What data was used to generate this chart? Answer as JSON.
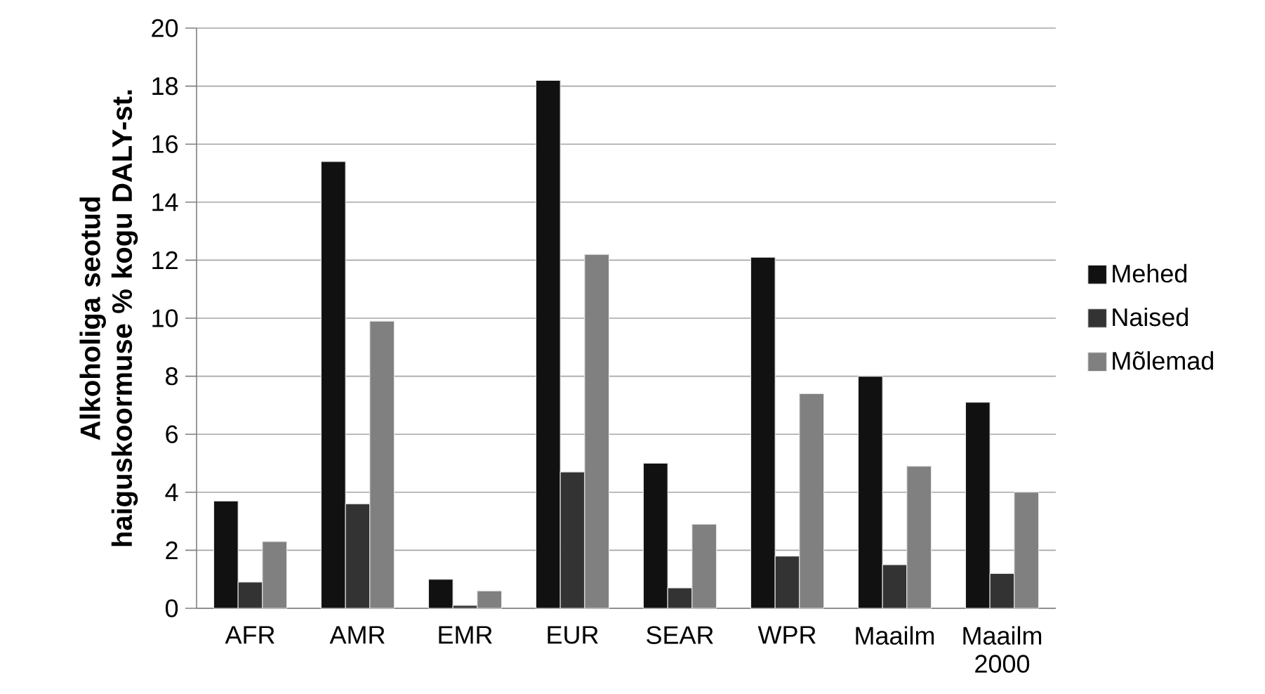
{
  "chart_data": {
    "type": "bar",
    "ylabel": "Alkoholiga seotud haiguskoormuse % kogu DALY-st.",
    "categories": [
      "AFR",
      "AMR",
      "EMR",
      "EUR",
      "SEAR",
      "WPR",
      "Maailm",
      "Maailm 2000"
    ],
    "series": [
      {
        "name": "Mehed",
        "color": "#111111",
        "values": [
          3.7,
          15.4,
          1.0,
          18.2,
          5.0,
          12.1,
          8.0,
          7.1
        ]
      },
      {
        "name": "Naised",
        "color": "#333333",
        "values": [
          0.9,
          3.6,
          0.1,
          4.7,
          0.7,
          1.8,
          1.5,
          1.2
        ]
      },
      {
        "name": "Mõlemad",
        "color": "#808080",
        "values": [
          2.3,
          9.9,
          0.6,
          12.2,
          2.9,
          7.4,
          4.9,
          4.0
        ]
      }
    ],
    "ylim": [
      0,
      20
    ],
    "yticks": [
      0,
      2,
      4,
      6,
      8,
      10,
      12,
      14,
      16,
      18,
      20
    ],
    "grid": "y",
    "legend": "right"
  }
}
